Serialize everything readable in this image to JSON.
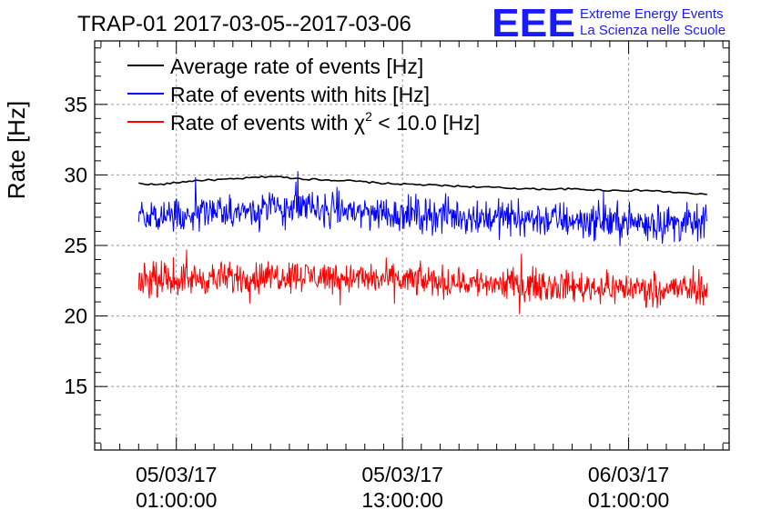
{
  "title": "TRAP-01 2017-03-05--2017-03-06",
  "logo": {
    "mark": "EEE",
    "line1": "Extreme Energy Events",
    "line2": "La Scienza nelle Scuole",
    "color": "#1a1aff"
  },
  "chart_data": {
    "type": "line",
    "title": "TRAP-01 2017-03-05--2017-03-06",
    "xlabel": "",
    "ylabel": "Rate [Hz]",
    "xlim": [
      "2017-03-04 20:40",
      "2017-03-06 06:20"
    ],
    "ylim": [
      10.5,
      39.5
    ],
    "grid": true,
    "legend_position": "top-left",
    "x_ticks": [
      {
        "time": "2017-03-05 01:00",
        "line1": "05/03/17",
        "line2": "01:00:00"
      },
      {
        "time": "2017-03-05 13:00",
        "line1": "05/03/17",
        "line2": "13:00:00"
      },
      {
        "time": "2017-03-06 01:00",
        "line1": "06/03/17",
        "line2": "01:00:00"
      }
    ],
    "y_ticks": [
      15,
      20,
      25,
      30,
      35
    ],
    "x_start": "2017-03-04 23:00",
    "x_end": "2017-03-06 05:10",
    "series": [
      {
        "name": "Average rate of events [Hz]",
        "color": "#000000",
        "x": [
          "2017-03-04 23:00",
          "2017-03-05 00:00",
          "2017-03-05 02:00",
          "2017-03-05 04:00",
          "2017-03-05 06:00",
          "2017-03-05 08:00",
          "2017-03-05 10:00",
          "2017-03-05 12:00",
          "2017-03-05 14:00",
          "2017-03-05 16:00",
          "2017-03-05 18:00",
          "2017-03-05 20:00",
          "2017-03-05 22:00",
          "2017-03-06 00:00",
          "2017-03-06 02:00",
          "2017-03-06 05:10"
        ],
        "values": [
          29.4,
          29.3,
          29.6,
          29.7,
          29.9,
          29.7,
          29.6,
          29.4,
          29.3,
          29.2,
          29.1,
          29.0,
          29.0,
          28.9,
          28.9,
          28.6
        ]
      },
      {
        "name": "Rate of events with hits [Hz]",
        "color": "#0000ff",
        "x": [
          "2017-03-04 23:00",
          "2017-03-05 04:00",
          "2017-03-05 07:00",
          "2017-03-05 12:00",
          "2017-03-05 18:00",
          "2017-03-06 00:00",
          "2017-03-06 05:10"
        ],
        "values": [
          27.1,
          27.4,
          27.7,
          27.3,
          27.0,
          26.7,
          26.5
        ],
        "spread": 1.1
      },
      {
        "name": "Rate of events with",
        "color": "#ff0000",
        "x": [
          "2017-03-04 23:00",
          "2017-03-05 04:00",
          "2017-03-05 07:00",
          "2017-03-05 12:00",
          "2017-03-05 18:00",
          "2017-03-06 00:00",
          "2017-03-06 05:10"
        ],
        "values": [
          22.5,
          22.7,
          22.9,
          22.6,
          22.3,
          22.0,
          21.9
        ],
        "spread": 0.95
      }
    ],
    "red_legend_parts": {
      "before": "Rate of events with ",
      "chi": "χ",
      "sup": "2",
      "after": " < 10.0 [Hz]"
    }
  }
}
